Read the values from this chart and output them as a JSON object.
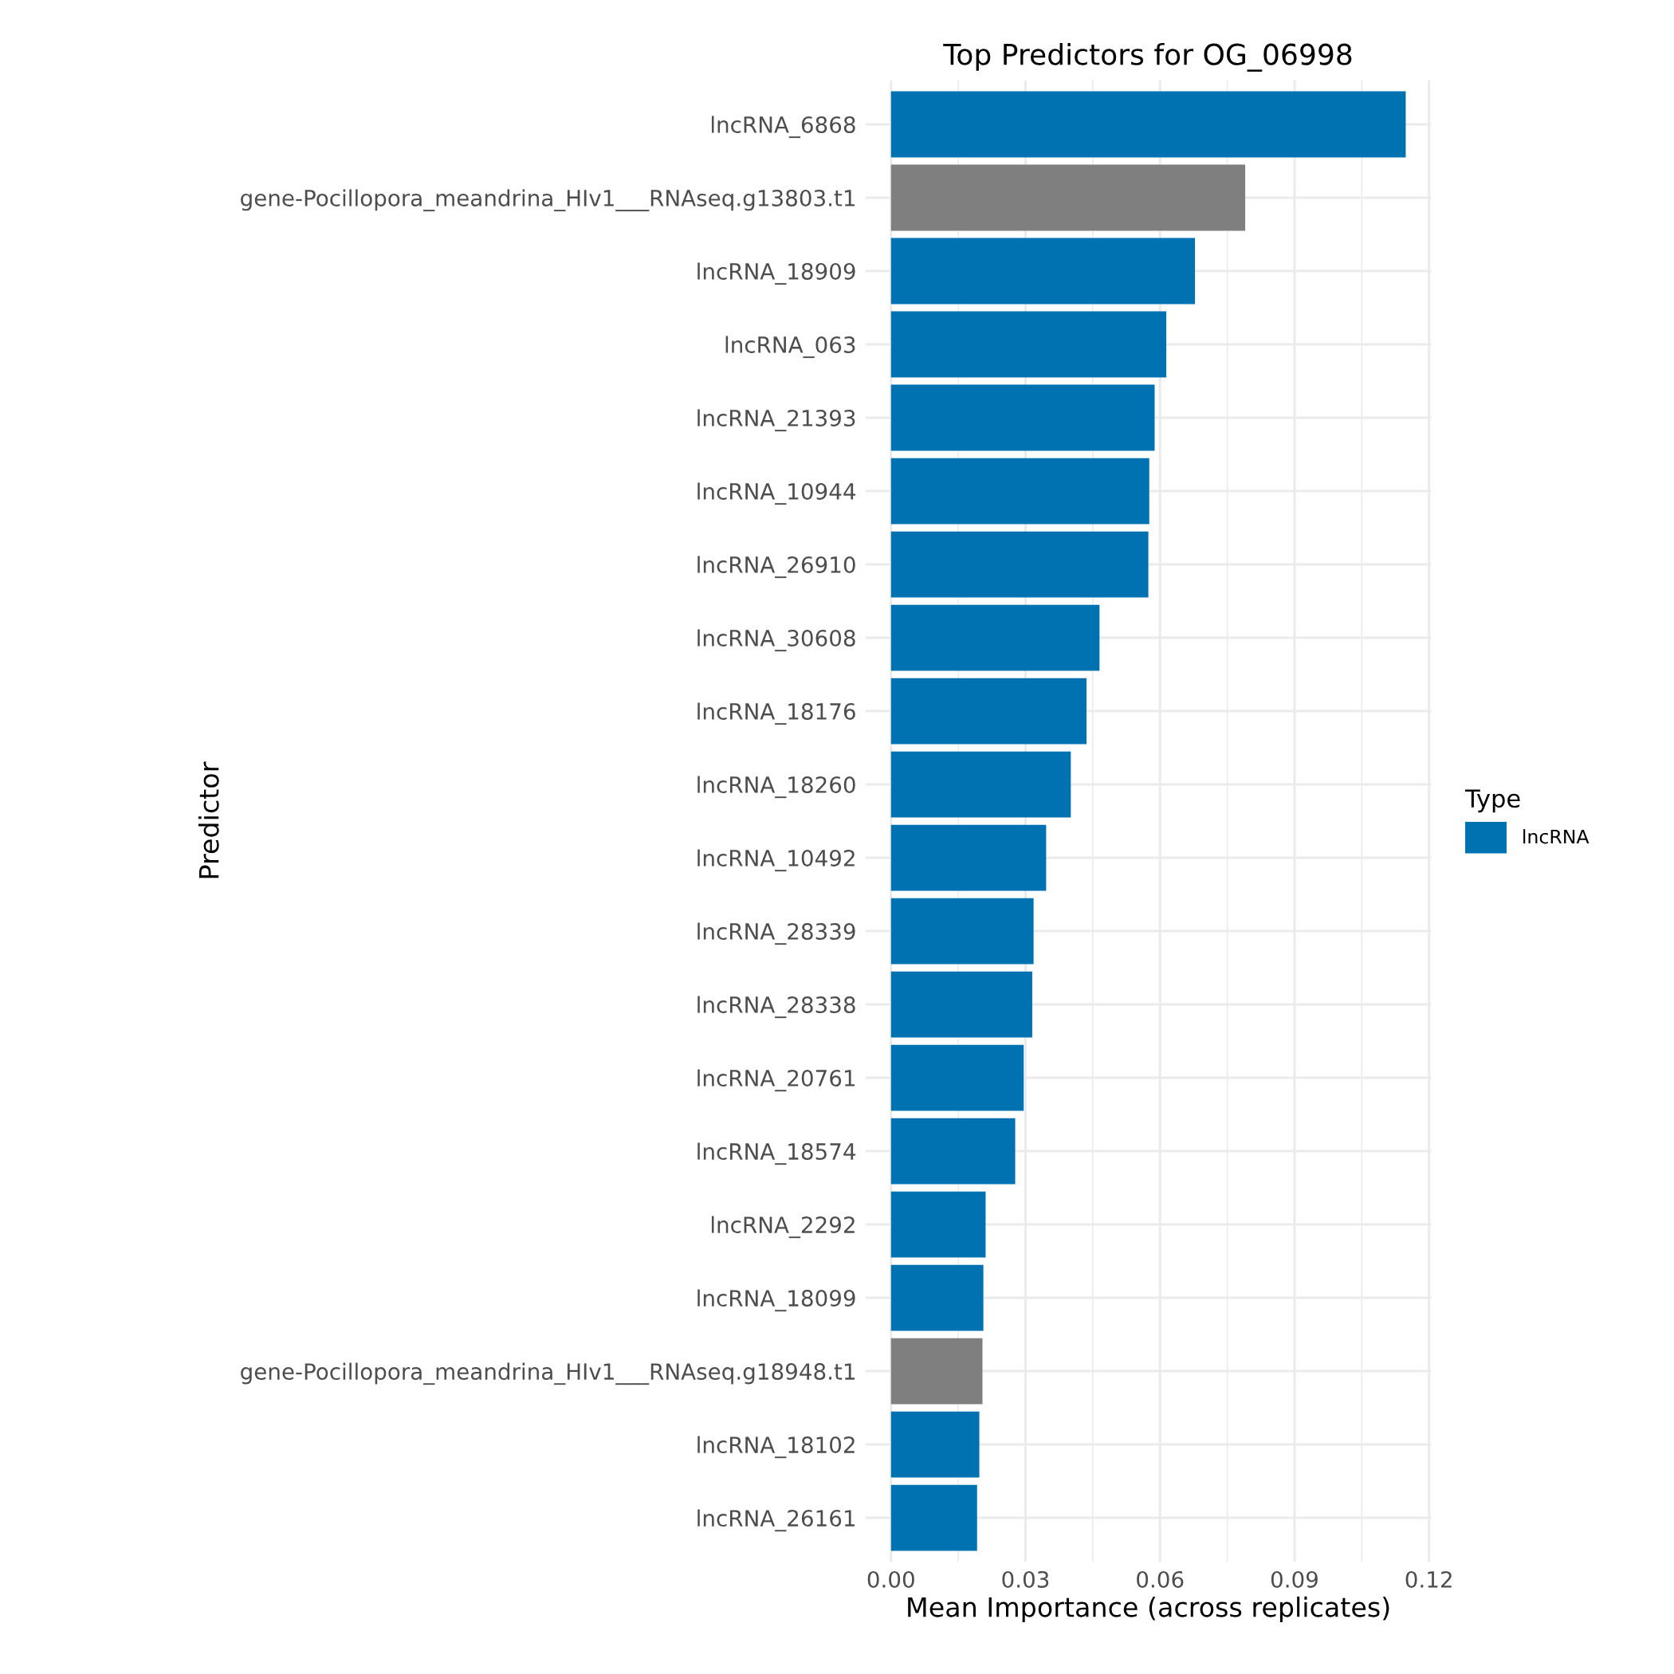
{
  "chart_data": {
    "type": "bar",
    "orientation": "horizontal",
    "title": "Top Predictors for OG_06998",
    "xlabel": "Mean Importance (across replicates)",
    "ylabel": "Predictor",
    "legend_title": "Type",
    "categories": [
      "lncRNA_6868",
      "gene-Pocillopora_meandrina_HIv1___RNAseq.g13803.t1",
      "lncRNA_18909",
      "lncRNA_063",
      "lncRNA_21393",
      "lncRNA_10944",
      "lncRNA_26910",
      "lncRNA_30608",
      "lncRNA_18176",
      "lncRNA_18260",
      "lncRNA_10492",
      "lncRNA_28339",
      "lncRNA_28338",
      "lncRNA_20761",
      "lncRNA_18574",
      "lncRNA_2292",
      "lncRNA_18099",
      "gene-Pocillopora_meandrina_HIv1___RNAseq.g18948.t1",
      "lncRNA_18102",
      "lncRNA_26161"
    ],
    "series": [
      {
        "name": "lncRNA",
        "color": "#0072b2",
        "colors": [
          "#0072b2",
          "#7f7f7f",
          "#0072b2",
          "#0072b2",
          "#0072b2",
          "#0072b2",
          "#0072b2",
          "#0072b2",
          "#0072b2",
          "#0072b2",
          "#0072b2",
          "#0072b2",
          "#0072b2",
          "#0072b2",
          "#0072b2",
          "#0072b2",
          "#0072b2",
          "#7f7f7f",
          "#0072b2",
          "#0072b2"
        ],
        "values": [
          0.1148,
          0.079,
          0.0678,
          0.0614,
          0.0588,
          0.0576,
          0.0574,
          0.0465,
          0.0436,
          0.0401,
          0.0346,
          0.0318,
          0.0315,
          0.0296,
          0.0277,
          0.0211,
          0.0206,
          0.0204,
          0.0197,
          0.0192
        ]
      }
    ],
    "xlim": [
      -0.0057,
      0.1205
    ],
    "xticks": [
      {
        "value": 0,
        "label": "0.00"
      },
      {
        "value": 0.03,
        "label": "0.03"
      },
      {
        "value": 0.06,
        "label": "0.06"
      },
      {
        "value": 0.09,
        "label": "0.09"
      },
      {
        "value": 0.12,
        "label": "0.12"
      }
    ],
    "grid": true,
    "legend": "right"
  }
}
